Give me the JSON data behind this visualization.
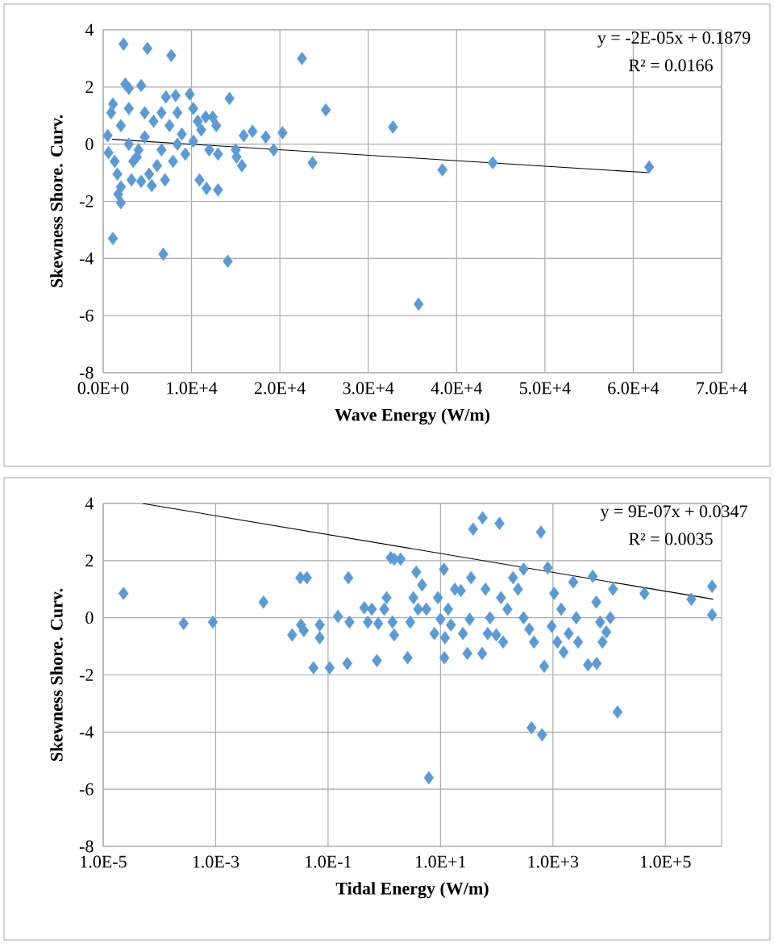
{
  "chart_data": [
    {
      "type": "scatter",
      "xlabel": "Wave Energy (W/m)",
      "ylabel": "Skewness Shore. Curv.",
      "annotations": [
        "y = -2E-05x + 0.1879",
        "R² = 0.0166"
      ],
      "grid": true,
      "xlim": [
        0,
        70000
      ],
      "ylim": [
        -8,
        4
      ],
      "xticks": [
        {
          "value": 0,
          "label": "0.0E+0"
        },
        {
          "value": 10000,
          "label": "1.0E+4"
        },
        {
          "value": 20000,
          "label": "2.0E+4"
        },
        {
          "value": 30000,
          "label": "3.0E+4"
        },
        {
          "value": 40000,
          "label": "4.0E+4"
        },
        {
          "value": 50000,
          "label": "5.0E+4"
        },
        {
          "value": 60000,
          "label": "6.0E+4"
        },
        {
          "value": 70000,
          "label": "7.0E+4"
        }
      ],
      "yticks": [
        -8,
        -6,
        -4,
        -2,
        0,
        2,
        4
      ],
      "series": [
        {
          "color": "#5b9bd5",
          "marker": "diamond",
          "x": [
            2300,
            5000,
            7700,
            22500,
            1100,
            6800,
            14100,
            35700,
            61800,
            44100,
            38400,
            32800,
            25200,
            23700,
            20300,
            19300,
            18400,
            16900,
            15900,
            15700,
            15100,
            15000,
            14300,
            13000,
            11700,
            10900,
            12400,
            9800,
            8200,
            7100,
            4300,
            2500,
            2900,
            2000,
            1700,
            2000,
            1100,
            900,
            500,
            600,
            1600,
            3400,
            4000,
            4700,
            5700,
            6600,
            7500,
            8900,
            10200,
            11100,
            12000,
            13000,
            12800,
            5200,
            7000,
            6100,
            7900,
            9300,
            2900,
            3800,
            2000,
            2900,
            4700,
            8400,
            10200,
            10700,
            11600,
            5500,
            1300,
            6600,
            8400,
            4300,
            3200
          ],
          "values": [
            3.5,
            3.35,
            3.1,
            3.0,
            -3.3,
            -3.85,
            -4.1,
            -5.6,
            -0.8,
            -0.65,
            -0.9,
            0.6,
            1.2,
            -0.65,
            0.4,
            -0.2,
            0.25,
            0.45,
            0.3,
            -0.75,
            -0.45,
            -0.2,
            1.6,
            -1.6,
            -1.55,
            -1.25,
            0.95,
            1.75,
            1.7,
            1.65,
            2.05,
            2.1,
            1.95,
            -2.05,
            -1.75,
            -1.5,
            1.4,
            1.1,
            0.3,
            -0.3,
            -1.05,
            -0.6,
            -0.2,
            0.25,
            0.8,
            1.1,
            0.65,
            0.35,
            0.1,
            0.5,
            -0.2,
            -0.35,
            0.65,
            -1.05,
            -1.25,
            -0.75,
            -0.6,
            -0.35,
            0.0,
            -0.45,
            0.65,
            1.25,
            1.1,
            1.1,
            1.25,
            0.8,
            0.95,
            -1.45,
            -0.6,
            -0.2,
            0.0,
            -1.3,
            -1.25
          ]
        },
        {
          "type": "line",
          "marker": "none",
          "color": "#000000",
          "x": [
            1000,
            61800
          ],
          "values": [
            0.17,
            -1.0
          ]
        }
      ]
    },
    {
      "type": "scatter",
      "xlabel": "Tidal Energy (W/m)",
      "ylabel": "Skewness Shore. Curv.",
      "annotations": [
        "y = 9E-07x + 0.0347",
        "R² = 0.0035"
      ],
      "grid": true,
      "log": "x",
      "xlim": [
        1e-05,
        1000000
      ],
      "ylim": [
        -8,
        4
      ],
      "xticks": [
        {
          "value": 1e-05,
          "label": "1.0E-5"
        },
        {
          "value": 0.001,
          "label": "1.0E-3"
        },
        {
          "value": 0.1,
          "label": "1.0E-1"
        },
        {
          "value": 10,
          "label": "1.0E+1"
        },
        {
          "value": 1000,
          "label": "1.0E+3"
        },
        {
          "value": 100000,
          "label": "1.0E+5"
        }
      ],
      "yticks": [
        -8,
        -6,
        -4,
        -2,
        0,
        2,
        4
      ],
      "series": [
        {
          "color": "#5b9bd5",
          "marker": "diamond",
          "x": [
            2.3e-05,
            0.00027,
            0.00089,
            0.0071,
            0.023,
            0.032,
            0.042,
            0.033,
            0.037,
            0.055,
            0.071,
            0.071,
            0.107,
            0.15,
            0.23,
            0.22,
            0.24,
            0.44,
            0.51,
            0.6,
            0.74,
            0.78,
            1.0,
            1.1,
            1.3,
            1.5,
            1.95,
            1.4,
            1.5,
            2.6,
            2.9,
            3.3,
            3.7,
            4.0,
            4.7,
            5.6,
            6.2,
            7.8,
            9.0,
            10,
            11.5,
            11.7,
            12,
            13.7,
            15.3,
            18,
            23,
            25,
            30,
            33,
            35,
            38,
            56,
            55,
            63,
            69,
            76,
            98,
            112,
            119,
            130,
            155,
            195,
            239,
            300,
            300,
            380,
            415,
            460,
            610,
            640,
            700,
            810,
            950,
            1050,
            1200,
            1400,
            1550,
            1900,
            2300,
            2600,
            2800,
            4200,
            5100,
            5900,
            6000,
            6900,
            7600,
            8900,
            11700,
            10500,
            14100,
            42400,
            289000,
            677000,
            677000
          ],
          "values": [
            0.85,
            -0.2,
            -0.15,
            0.55,
            -0.6,
            1.4,
            1.4,
            -0.25,
            -0.45,
            -1.75,
            -0.25,
            -0.7,
            -1.75,
            0.05,
            1.4,
            -1.6,
            -0.15,
            0.35,
            -0.15,
            0.3,
            -1.5,
            -0.2,
            0.3,
            0.7,
            2.1,
            2.05,
            2.05,
            -0.15,
            -0.6,
            -1.4,
            -0.15,
            0.7,
            1.6,
            0.3,
            1.15,
            0.3,
            -5.6,
            -0.55,
            0.7,
            -0.05,
            1.7,
            -1.4,
            -0.7,
            0.3,
            -0.25,
            1.0,
            0.95,
            -0.55,
            -1.25,
            -0.05,
            1.4,
            3.1,
            3.5,
            -1.25,
            1.0,
            -0.55,
            0.0,
            -0.6,
            3.3,
            0.7,
            -0.85,
            0.3,
            1.4,
            1.0,
            1.7,
            0.0,
            -0.4,
            -3.85,
            -0.85,
            3.0,
            -4.1,
            -1.7,
            1.75,
            -0.3,
            0.85,
            -0.85,
            0.3,
            -1.2,
            -0.55,
            1.25,
            0.0,
            -0.85,
            -1.65,
            1.45,
            0.55,
            -1.6,
            -0.15,
            -0.85,
            -0.5,
            1.0,
            0.0,
            -3.3,
            0.85,
            0.65,
            1.1,
            0.1
          ]
        },
        {
          "type": "line",
          "marker": "none",
          "color": "#000000",
          "x": [
            5e-05,
            710000
          ],
          "values": [
            4.0,
            0.65
          ]
        }
      ]
    }
  ]
}
